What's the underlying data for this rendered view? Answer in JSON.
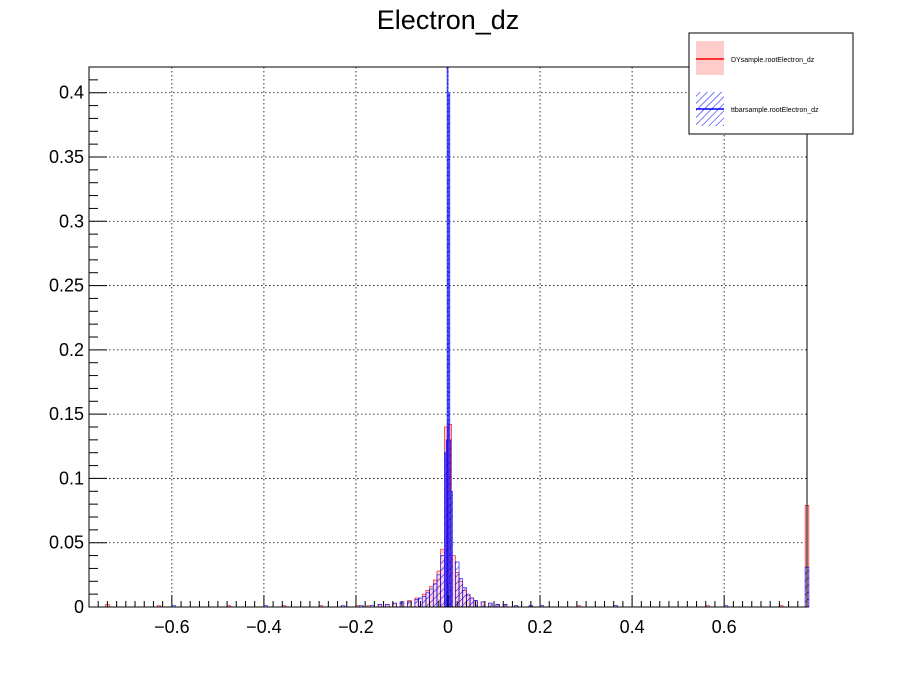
{
  "chart_data": {
    "type": "histogram",
    "title": "Electron_dz",
    "xlabel": "",
    "ylabel": "",
    "xlim": [
      -0.78,
      0.78
    ],
    "ylim": [
      0,
      0.42
    ],
    "grid": true,
    "legend_position": "top-right",
    "x_ticks": [
      -0.6,
      -0.4,
      -0.2,
      0,
      0.2,
      0.4,
      0.6
    ],
    "x_tick_labels": [
      "−0.6",
      "−0.4",
      "−0.2",
      "0",
      "0.2",
      "0.4",
      "0.6"
    ],
    "y_ticks": [
      0,
      0.05,
      0.1,
      0.15,
      0.2,
      0.25,
      0.3,
      0.35,
      0.4
    ],
    "y_tick_labels": [
      "0",
      "0.05",
      "0.1",
      "0.15",
      "0.2",
      "0.25",
      "0.3",
      "0.35",
      "0.4"
    ],
    "bin_width": 0.008,
    "series": [
      {
        "name": "DYsample.rootElectron_dz",
        "color": "#ff0000",
        "fill": "#ffcccc",
        "style": "solid-fill",
        "bins": [
          [
            -0.744,
            0.002
          ],
          [
            -0.632,
            0.001
          ],
          [
            -0.48,
            0.001
          ],
          [
            -0.36,
            0.001
          ],
          [
            -0.28,
            0.001
          ],
          [
            -0.2,
            0.001
          ],
          [
            -0.176,
            0.001
          ],
          [
            -0.152,
            0.002
          ],
          [
            -0.136,
            0.002
          ],
          [
            -0.12,
            0.003
          ],
          [
            -0.104,
            0.004
          ],
          [
            -0.088,
            0.005
          ],
          [
            -0.072,
            0.007
          ],
          [
            -0.056,
            0.01
          ],
          [
            -0.048,
            0.013
          ],
          [
            -0.04,
            0.016
          ],
          [
            -0.032,
            0.021
          ],
          [
            -0.024,
            0.028
          ],
          [
            -0.016,
            0.045
          ],
          [
            -0.008,
            0.14
          ],
          [
            0,
            0.142
          ],
          [
            0.008,
            0.04
          ],
          [
            0.016,
            0.027
          ],
          [
            0.024,
            0.02
          ],
          [
            0.032,
            0.013
          ],
          [
            0.04,
            0.009
          ],
          [
            0.048,
            0.007
          ],
          [
            0.056,
            0.005
          ],
          [
            0.072,
            0.004
          ],
          [
            0.088,
            0.003
          ],
          [
            0.104,
            0.002
          ],
          [
            0.12,
            0.002
          ],
          [
            0.144,
            0.001
          ],
          [
            0.176,
            0.001
          ],
          [
            0.2,
            0.001
          ],
          [
            0.28,
            0.001
          ],
          [
            0.36,
            0.001
          ],
          [
            0.56,
            0.001
          ],
          [
            0.72,
            0.001
          ],
          [
            0.776,
            0.079
          ]
        ]
      },
      {
        "name": "ttbarsample.rootElectron_dz",
        "color": "#0000ff",
        "fill": "#0000ff",
        "style": "hatched",
        "bins": [
          [
            -0.6,
            0.001
          ],
          [
            -0.4,
            0.001
          ],
          [
            -0.232,
            0.001
          ],
          [
            -0.192,
            0.001
          ],
          [
            -0.168,
            0.001
          ],
          [
            -0.152,
            0.002
          ],
          [
            -0.136,
            0.002
          ],
          [
            -0.12,
            0.003
          ],
          [
            -0.104,
            0.004
          ],
          [
            -0.088,
            0.004
          ],
          [
            -0.072,
            0.006
          ],
          [
            -0.064,
            0.007
          ],
          [
            -0.056,
            0.008
          ],
          [
            -0.048,
            0.011
          ],
          [
            -0.04,
            0.014
          ],
          [
            -0.032,
            0.018
          ],
          [
            -0.024,
            0.025
          ],
          [
            -0.016,
            0.04
          ],
          [
            -0.008,
            0.12
          ],
          [
            -0.004,
            0.13
          ],
          [
            -0.002,
            0.42
          ],
          [
            0.002,
            0.4
          ],
          [
            0.004,
            0.13
          ],
          [
            0.008,
            0.09
          ],
          [
            0.016,
            0.035
          ],
          [
            0.024,
            0.022
          ],
          [
            0.032,
            0.015
          ],
          [
            0.04,
            0.01
          ],
          [
            0.048,
            0.007
          ],
          [
            0.056,
            0.005
          ],
          [
            0.072,
            0.004
          ],
          [
            0.088,
            0.003
          ],
          [
            0.104,
            0.002
          ],
          [
            0.12,
            0.002
          ],
          [
            0.144,
            0.001
          ],
          [
            0.176,
            0.001
          ],
          [
            0.2,
            0.001
          ],
          [
            0.36,
            0.001
          ],
          [
            0.6,
            0.001
          ],
          [
            0.776,
            0.031
          ]
        ]
      }
    ]
  }
}
